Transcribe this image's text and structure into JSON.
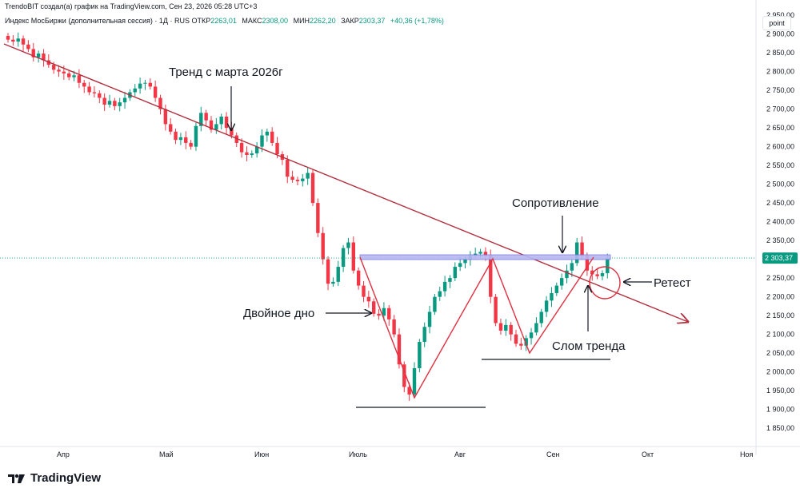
{
  "header": {
    "credit": "TrendoBIT создал(а) график на TradingView.com, Сен 23, 2026 05:28 UTC+3"
  },
  "ohlc": {
    "title": "Индекс МосБиржи (дополнительная сессия) · 1Д · RUS",
    "open_label": "ОТКР",
    "open": "2263,01",
    "high_label": "МАКС",
    "high": "2308,00",
    "low_label": "МИН",
    "low": "2262,20",
    "close_label": "ЗАКР",
    "close": "2303,37",
    "change": "+40,36 (+1,78%)"
  },
  "scale_button": "point",
  "brand": "TradingView",
  "colors": {
    "up": "#089981",
    "down": "#f23645",
    "trendline": "#b2303f",
    "pattern": "#e03040",
    "resistance": "#9c9cf0",
    "last_price": "#089981",
    "brand": "#131722"
  },
  "chart_data": {
    "type": "candlestick",
    "ylim": [
      1810,
      2980
    ],
    "y_ticks": [
      "2 950,00",
      "2 900,00",
      "2 850,00",
      "2 800,00",
      "2 750,00",
      "2 700,00",
      "2 650,00",
      "2 600,00",
      "2 550,00",
      "2 500,00",
      "2 450,00",
      "2 400,00",
      "2 350,00",
      "2 300,00",
      "2 250,00",
      "2 200,00",
      "2 150,00",
      "2 100,00",
      "2 050,00",
      "2 000,00",
      "1 950,00",
      "1 900,00",
      "1 850,00"
    ],
    "y_tick_values": [
      2950,
      2900,
      2850,
      2800,
      2750,
      2700,
      2650,
      2600,
      2550,
      2500,
      2450,
      2400,
      2350,
      2300,
      2250,
      2200,
      2150,
      2100,
      2050,
      2000,
      1950,
      1900,
      1850
    ],
    "x_ticks": [
      "Апр",
      "Май",
      "Июн",
      "Июль",
      "Авг",
      "Сен",
      "Окт",
      "Ноя"
    ],
    "last_price_label": "2 303,37",
    "last_price": 2303.37,
    "closes": [
      2885,
      2880,
      2888,
      2872,
      2860,
      2838,
      2848,
      2830,
      2818,
      2805,
      2800,
      2795,
      2785,
      2790,
      2770,
      2760,
      2745,
      2742,
      2730,
      2712,
      2722,
      2708,
      2718,
      2730,
      2745,
      2755,
      2768,
      2770,
      2760,
      2730,
      2700,
      2660,
      2640,
      2618,
      2625,
      2610,
      2600,
      2655,
      2690,
      2670,
      2645,
      2660,
      2680,
      2650,
      2630,
      2610,
      2585,
      2578,
      2582,
      2600,
      2630,
      2640,
      2610,
      2580,
      2565,
      2520,
      2512,
      2508,
      2515,
      2530,
      2450,
      2370,
      2300,
      2235,
      2240,
      2280,
      2330,
      2345,
      2270,
      2230,
      2200,
      2188,
      2155,
      2150,
      2170,
      2140,
      2100,
      2020,
      1960,
      1940,
      2010,
      2080,
      2120,
      2160,
      2200,
      2215,
      2240,
      2250,
      2280,
      2290,
      2300,
      2310,
      2315,
      2320,
      2310,
      2200,
      2130,
      2110,
      2125,
      2100,
      2075,
      2070,
      2090,
      2105,
      2130,
      2160,
      2190,
      2210,
      2230,
      2250,
      2270,
      2290,
      2345,
      2310,
      2270,
      2260,
      2255,
      2263,
      2303
    ],
    "annotations": {
      "trend": "Тренд с марта 2026г",
      "resistance": "Сопротивление",
      "double_bottom": "Двойное дно",
      "break": "Слом тренда",
      "retest": "Ретест"
    }
  }
}
